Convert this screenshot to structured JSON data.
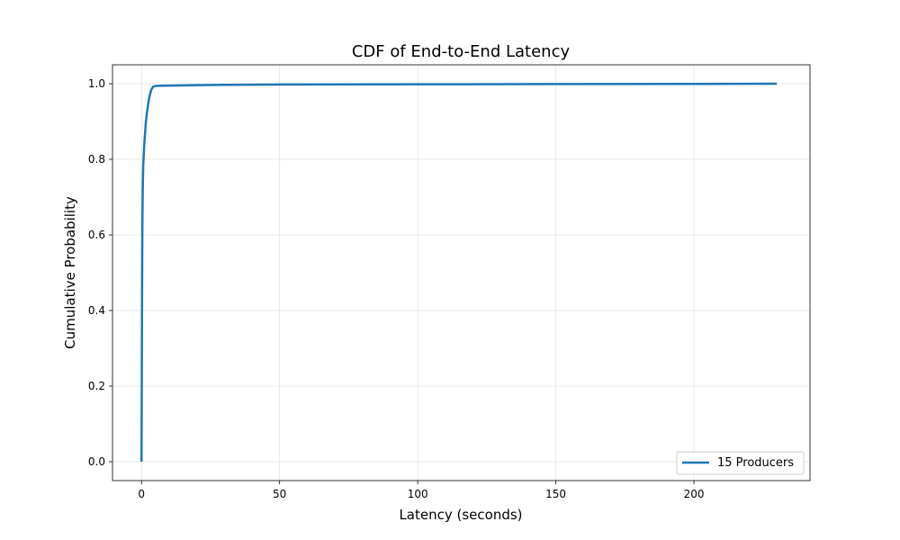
{
  "chart_data": {
    "type": "line",
    "title": "CDF of End-to-End Latency",
    "xlabel": "Latency (seconds)",
    "ylabel": "Cumulative Probability",
    "xlim": [
      -10.5,
      242
    ],
    "ylim": [
      -0.05,
      1.05
    ],
    "xticks": [
      0,
      50,
      100,
      150,
      200
    ],
    "yticks": [
      0.0,
      0.2,
      0.4,
      0.6,
      0.8,
      1.0
    ],
    "xtick_labels": [
      "0",
      "50",
      "100",
      "150",
      "200"
    ],
    "ytick_labels": [
      "0.0",
      "0.2",
      "0.4",
      "0.6",
      "0.8",
      "1.0"
    ],
    "grid": true,
    "legend_position": "lower-right",
    "series": [
      {
        "name": "15 Producers",
        "color": "#1f77b4",
        "x": [
          0,
          0.1,
          0.2,
          0.3,
          0.45,
          0.6,
          0.8,
          1.0,
          1.3,
          1.6,
          2.0,
          2.5,
          3.0,
          3.6,
          4.2,
          5.0,
          7.0,
          10,
          20,
          30,
          50,
          100,
          150,
          200,
          230
        ],
        "y": [
          0.0,
          0.2,
          0.45,
          0.62,
          0.72,
          0.78,
          0.81,
          0.84,
          0.87,
          0.9,
          0.925,
          0.95,
          0.97,
          0.985,
          0.992,
          0.994,
          0.9945,
          0.995,
          0.996,
          0.997,
          0.998,
          0.9985,
          0.999,
          0.9995,
          1.0
        ]
      }
    ]
  }
}
